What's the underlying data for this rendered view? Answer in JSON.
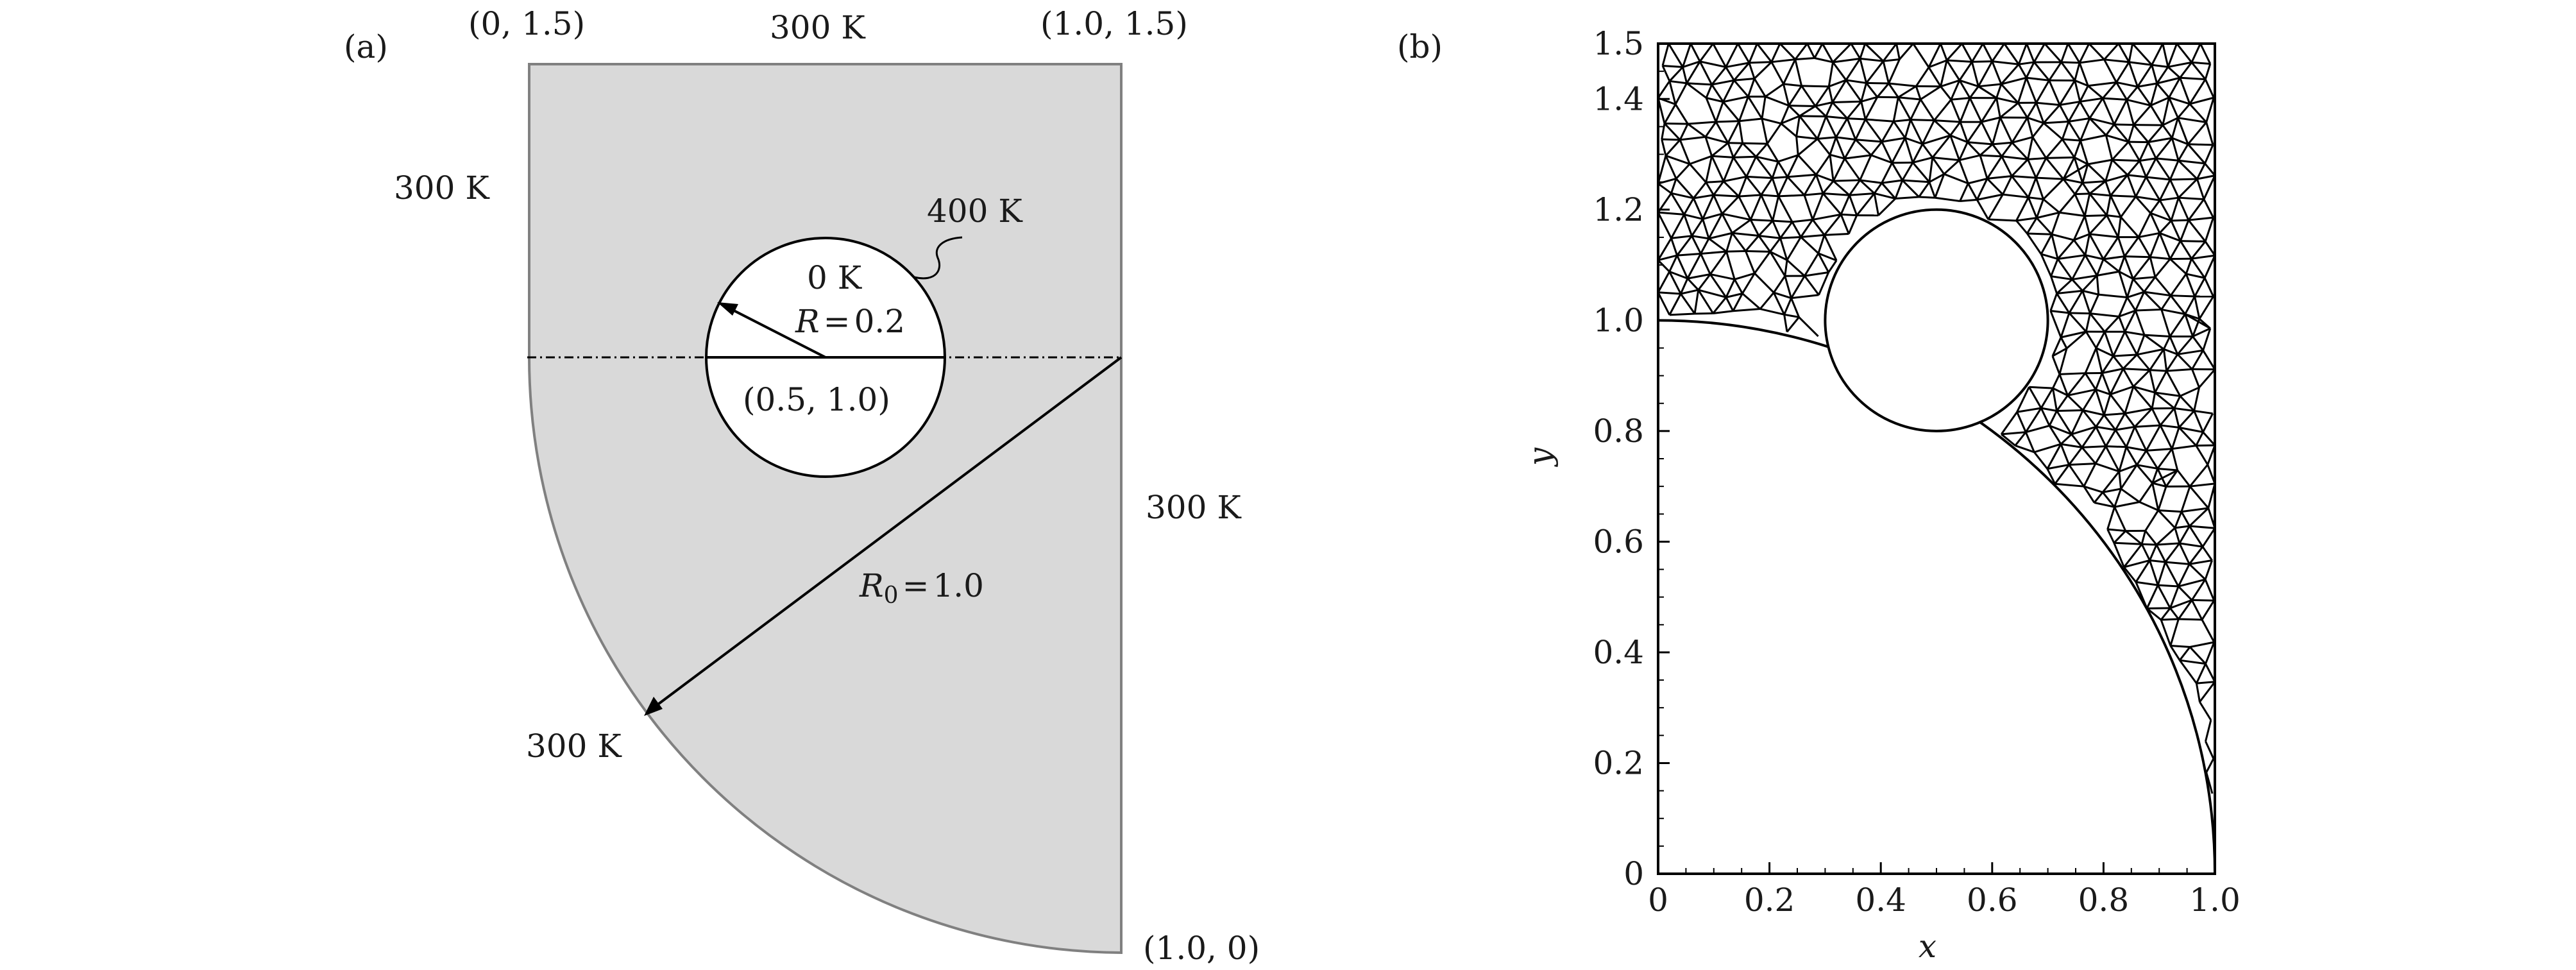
{
  "panel_a": {
    "label": "(a)",
    "corner_top_left": "(0, 1.5)",
    "corner_top_right": "(1.0, 1.5)",
    "corner_bottom_right": "(1.0, 0)",
    "top_boundary": "300 K",
    "left_boundary": "300 K",
    "right_boundary": "300 K",
    "arc_boundary": "300 K",
    "hole_boundary": "400 K",
    "hole_inner": "0 K",
    "hole_radius": {
      "symbol": "R",
      "eq": "=",
      "value": "0.2"
    },
    "hole_center": "(0.5, 1.0)",
    "outer_radius": {
      "symbol": "R",
      "subscript": "0",
      "eq": "=",
      "value": "1.0"
    },
    "colors": {
      "fill": "#d9d9d9",
      "outline": "#808080",
      "stroke": "#000000"
    }
  },
  "panel_b": {
    "label": "(b)",
    "xlabel": "x",
    "ylabel": "y",
    "x_ticks": [
      "0",
      "0.2",
      "0.4",
      "0.6",
      "0.8",
      "1.0"
    ],
    "y_ticks": [
      "0",
      "0.2",
      "0.4",
      "0.6",
      "0.8",
      "1.0",
      "1.2",
      "1.4",
      "1.5"
    ]
  },
  "chart_data": {
    "type": "mesh",
    "xlim": [
      0,
      1.0
    ],
    "ylim": [
      0,
      1.5
    ],
    "xlabel": "x",
    "ylabel": "y",
    "x_ticks": [
      0,
      0.2,
      0.4,
      0.6,
      0.8,
      1.0
    ],
    "y_ticks": [
      0,
      0.2,
      0.4,
      0.6,
      0.8,
      1.0,
      1.2,
      1.4,
      1.5
    ],
    "domain": {
      "rectangle": {
        "x": [
          0,
          1.0
        ],
        "y": [
          0,
          1.5
        ]
      },
      "removed_quarter_disk": {
        "center": [
          0,
          0
        ],
        "radius": 1.0
      },
      "hole": {
        "center": [
          0.5,
          1.0
        ],
        "radius": 0.2
      }
    },
    "mesh_spacing": 0.04,
    "grid": false
  }
}
